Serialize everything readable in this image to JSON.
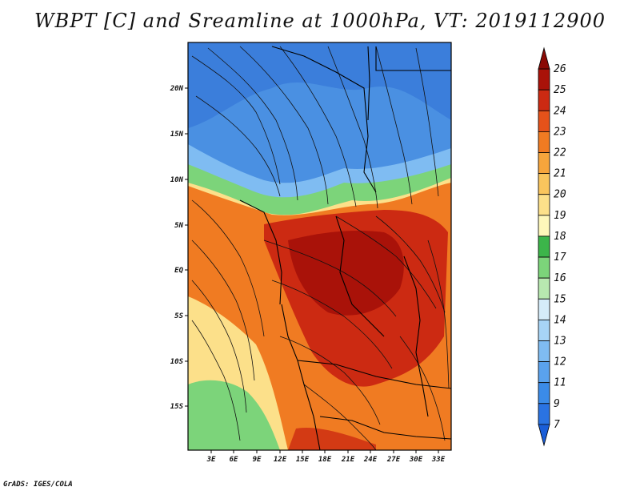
{
  "title": "WBPT [C] and Sreamline at 1000hPa, VT: 2019112900",
  "footer": "GrADS: IGES/COLA",
  "lat_labels": [
    "20N",
    "15N",
    "10N",
    "5N",
    "EQ",
    "5S",
    "10S",
    "15S"
  ],
  "lon_labels": [
    "3E",
    "6E",
    "9E",
    "12E",
    "15E",
    "18E",
    "21E",
    "24E",
    "27E",
    "30E",
    "33E"
  ],
  "colorbar": {
    "labels": [
      "7",
      "9",
      "11",
      "12",
      "13",
      "14",
      "15",
      "16",
      "17",
      "18",
      "19",
      "20",
      "21",
      "22",
      "23",
      "24",
      "25",
      "26"
    ],
    "colors": [
      "#1a5ed8",
      "#2a73e2",
      "#3b8be8",
      "#5aa2ee",
      "#7fbcf2",
      "#a7d4f6",
      "#d5ecf9",
      "#b8e8b0",
      "#7cd47a",
      "#3cb54a",
      "#fef7ba",
      "#fce08a",
      "#f9c55d",
      "#f6a53c",
      "#f07b22",
      "#e5521a",
      "#cc2a12",
      "#a91209",
      "#8a0a05"
    ]
  },
  "fields": {
    "cold": "#4a90e2",
    "cool": "#7fbcf2",
    "green": "#7cd47a",
    "yellow": "#fce08a",
    "orange": "#f07b22",
    "red": "#cc2a12",
    "darkred": "#a91209"
  }
}
